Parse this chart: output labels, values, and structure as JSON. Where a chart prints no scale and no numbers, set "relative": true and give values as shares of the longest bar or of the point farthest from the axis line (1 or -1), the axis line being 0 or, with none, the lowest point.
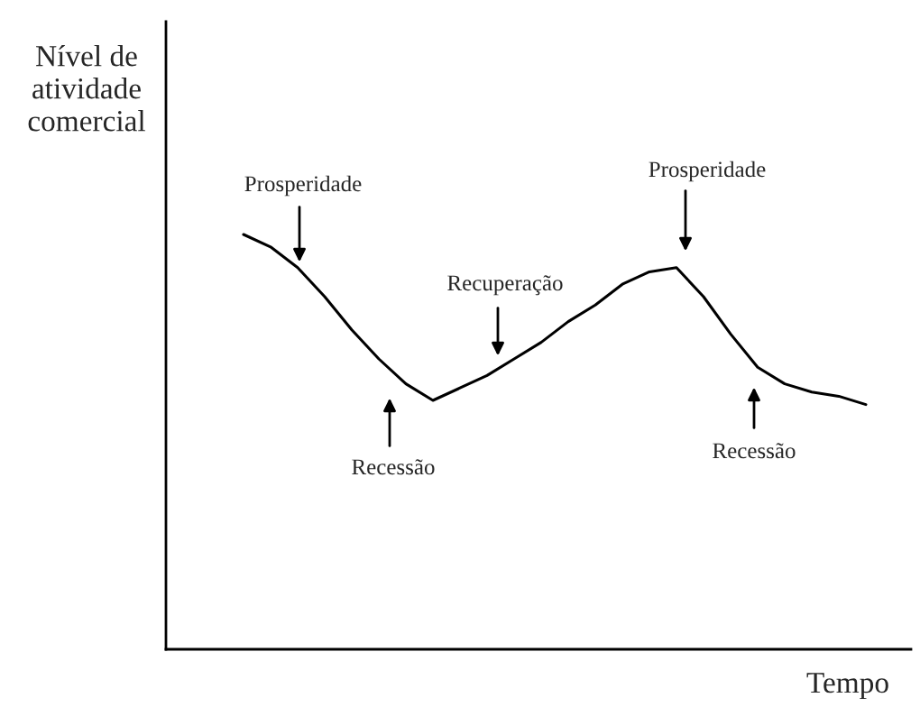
{
  "chart_data": {
    "type": "line",
    "relative": true,
    "xlabel": "Tempo",
    "ylabel": "Nível de\natividade\ncomercial",
    "color": "#000000",
    "categories": [
      null,
      null,
      null,
      null,
      null,
      null,
      null,
      null,
      null,
      null,
      null,
      null,
      null,
      null,
      null,
      null,
      null,
      null,
      null,
      null,
      null,
      null,
      null,
      null
    ],
    "values": [
      1.0,
      0.97,
      0.92,
      0.85,
      0.77,
      0.7,
      0.64,
      0.6,
      0.63,
      0.66,
      0.7,
      0.74,
      0.79,
      0.83,
      0.88,
      0.91,
      0.92,
      0.85,
      0.76,
      0.68,
      0.64,
      0.62,
      0.61,
      0.59
    ],
    "annotations": [
      "Prosperidade",
      "Recessão",
      "Recuperação",
      "Prosperidade",
      "Recessão"
    ],
    "grid": false,
    "legend": false,
    "marker": "none",
    "line_style": "solid"
  }
}
